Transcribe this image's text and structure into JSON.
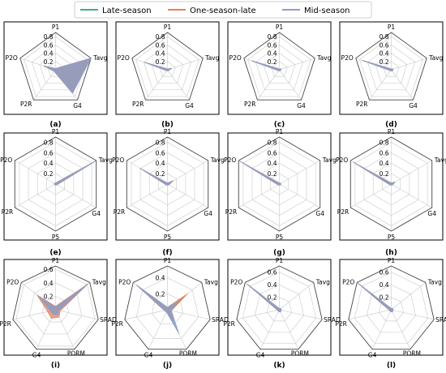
{
  "legend": {
    "position": "top-center",
    "items": [
      {
        "name": "Late-season",
        "color": "#44aa88"
      },
      {
        "name": "One-season-late",
        "color": "#e8825a"
      },
      {
        "name": "Mid-season",
        "color": "#8f9dc9"
      }
    ]
  },
  "chart_data": [
    {
      "type": "radar",
      "label": "(a)",
      "axes": [
        "P1",
        "Tavg",
        "G4",
        "P2R",
        "P2O"
      ],
      "r_ticks": [
        0.2,
        0.4,
        0.6,
        0.8
      ],
      "r_max": 0.9,
      "series": [
        {
          "name": "Late-season",
          "values": [
            0.03,
            0.9,
            0.68,
            0.05,
            0.3
          ]
        },
        {
          "name": "One-season-late",
          "values": [
            0.03,
            0.88,
            0.7,
            0.05,
            0.3
          ]
        },
        {
          "name": "Mid-season",
          "values": [
            0.03,
            0.9,
            0.7,
            0.05,
            0.29
          ]
        }
      ]
    },
    {
      "type": "radar",
      "label": "(b)",
      "axes": [
        "P1",
        "Tavg",
        "G4",
        "P2R",
        "P2O"
      ],
      "r_ticks": [
        0.2,
        0.4,
        0.6,
        0.8
      ],
      "r_max": 0.9,
      "series": [
        {
          "name": "Late-season",
          "values": [
            0.02,
            0.1,
            0.03,
            0.03,
            0.58
          ]
        },
        {
          "name": "One-season-late",
          "values": [
            0.02,
            0.11,
            0.03,
            0.03,
            0.57
          ]
        },
        {
          "name": "Mid-season",
          "values": [
            0.02,
            0.09,
            0.03,
            0.03,
            0.58
          ]
        }
      ]
    },
    {
      "type": "radar",
      "label": "(c)",
      "axes": [
        "P1",
        "Tavg",
        "G4",
        "P2R",
        "P2O"
      ],
      "r_ticks": [
        0.2,
        0.4,
        0.6,
        0.8
      ],
      "r_max": 0.9,
      "series": [
        {
          "name": "Late-season",
          "values": [
            0.02,
            0.05,
            0.03,
            0.03,
            0.7
          ]
        },
        {
          "name": "One-season-late",
          "values": [
            0.02,
            0.05,
            0.03,
            0.03,
            0.7
          ]
        },
        {
          "name": "Mid-season",
          "values": [
            0.02,
            0.05,
            0.03,
            0.03,
            0.7
          ]
        }
      ]
    },
    {
      "type": "radar",
      "label": "(d)",
      "axes": [
        "P1",
        "Tavg",
        "G4",
        "P2R",
        "P2O"
      ],
      "r_ticks": [
        0.2,
        0.4,
        0.6,
        0.8
      ],
      "r_max": 0.9,
      "series": [
        {
          "name": "Late-season",
          "values": [
            0.02,
            0.05,
            0.04,
            0.03,
            0.73
          ]
        },
        {
          "name": "One-season-late",
          "values": [
            0.02,
            0.05,
            0.04,
            0.03,
            0.73
          ]
        },
        {
          "name": "Mid-season",
          "values": [
            0.02,
            0.05,
            0.04,
            0.03,
            0.73
          ]
        }
      ]
    },
    {
      "type": "radar",
      "label": "(e)",
      "axes": [
        "P1",
        "Tavg",
        "G4",
        "P5",
        "P2R",
        "P2O"
      ],
      "r_ticks": [
        0.2,
        0.4,
        0.6,
        0.8
      ],
      "r_max": 0.9,
      "series": [
        {
          "name": "Late-season",
          "values": [
            0.02,
            0.88,
            0.03,
            0.02,
            0.02,
            0.03
          ]
        },
        {
          "name": "One-season-late",
          "values": [
            0.02,
            0.88,
            0.03,
            0.02,
            0.02,
            0.03
          ]
        },
        {
          "name": "Mid-season",
          "values": [
            0.02,
            0.88,
            0.03,
            0.02,
            0.02,
            0.03
          ]
        }
      ]
    },
    {
      "type": "radar",
      "label": "(f)",
      "axes": [
        "P1",
        "Tavg",
        "G4",
        "P5",
        "P2R",
        "P2O"
      ],
      "r_ticks": [
        0.2,
        0.4,
        0.6,
        0.8
      ],
      "r_max": 0.9,
      "series": [
        {
          "name": "Late-season",
          "values": [
            0.02,
            0.12,
            0.03,
            0.02,
            0.03,
            0.6
          ]
        },
        {
          "name": "One-season-late",
          "values": [
            0.02,
            0.13,
            0.03,
            0.02,
            0.03,
            0.6
          ]
        },
        {
          "name": "Mid-season",
          "values": [
            0.02,
            0.11,
            0.03,
            0.02,
            0.03,
            0.6
          ]
        }
      ]
    },
    {
      "type": "radar",
      "label": "(g)",
      "axes": [
        "P1",
        "Tavg",
        "G4",
        "P5",
        "P2R",
        "P2O"
      ],
      "r_ticks": [
        0.2,
        0.4,
        0.6,
        0.8
      ],
      "r_max": 0.9,
      "series": [
        {
          "name": "Late-season",
          "values": [
            0.02,
            0.03,
            0.03,
            0.02,
            0.03,
            0.87
          ]
        },
        {
          "name": "One-season-late",
          "values": [
            0.02,
            0.03,
            0.03,
            0.02,
            0.03,
            0.87
          ]
        },
        {
          "name": "Mid-season",
          "values": [
            0.02,
            0.03,
            0.03,
            0.02,
            0.03,
            0.87
          ]
        }
      ]
    },
    {
      "type": "radar",
      "label": "(h)",
      "axes": [
        "P1",
        "Tavg",
        "G4",
        "P5",
        "P2R",
        "P2O"
      ],
      "r_ticks": [
        0.2,
        0.4,
        0.6,
        0.8
      ],
      "r_max": 0.9,
      "series": [
        {
          "name": "Late-season",
          "values": [
            0.02,
            0.08,
            0.03,
            0.02,
            0.03,
            0.84
          ]
        },
        {
          "name": "One-season-late",
          "values": [
            0.02,
            0.06,
            0.03,
            0.02,
            0.03,
            0.84
          ]
        },
        {
          "name": "Mid-season",
          "values": [
            0.02,
            0.04,
            0.03,
            0.02,
            0.03,
            0.84
          ]
        }
      ]
    },
    {
      "type": "radar",
      "label": "(i)",
      "axes": [
        "P1",
        "Tavg",
        "SRAD",
        "PORM",
        "G4",
        "P2R",
        "P2O"
      ],
      "r_ticks": [
        0.2,
        0.4,
        0.6
      ],
      "r_max": 0.65,
      "series": [
        {
          "name": "Late-season",
          "values": [
            0.04,
            0.6,
            0.05,
            0.07,
            0.06,
            0.06,
            0.3
          ]
        },
        {
          "name": "One-season-late",
          "values": [
            0.05,
            0.62,
            0.07,
            0.12,
            0.14,
            0.12,
            0.35
          ]
        },
        {
          "name": "Mid-season",
          "values": [
            0.04,
            0.62,
            0.05,
            0.08,
            0.08,
            0.08,
            0.32
          ]
        }
      ]
    },
    {
      "type": "radar",
      "label": "(j)",
      "axes": [
        "P1",
        "Tavg",
        "SRAD",
        "PORM",
        "G4",
        "P2R",
        "P2O"
      ],
      "r_ticks": [
        0.2,
        0.4
      ],
      "r_max": 0.55,
      "series": [
        {
          "name": "Late-season",
          "values": [
            0.03,
            0.28,
            0.05,
            0.15,
            0.03,
            0.04,
            0.48
          ]
        },
        {
          "name": "One-season-late",
          "values": [
            0.03,
            0.32,
            0.05,
            0.17,
            0.03,
            0.04,
            0.5
          ]
        },
        {
          "name": "Mid-season",
          "values": [
            0.03,
            0.16,
            0.05,
            0.33,
            0.03,
            0.04,
            0.5
          ]
        }
      ]
    },
    {
      "type": "radar",
      "label": "(k)",
      "axes": [
        "P1",
        "Tavg",
        "SRAD",
        "PORM",
        "G4",
        "P2R",
        "P2O"
      ],
      "r_ticks": [
        0.2,
        0.4,
        0.6
      ],
      "r_max": 0.7,
      "series": [
        {
          "name": "Late-season",
          "values": [
            0.02,
            0.03,
            0.03,
            0.04,
            0.03,
            0.03,
            0.66
          ]
        },
        {
          "name": "One-season-late",
          "values": [
            0.02,
            0.03,
            0.03,
            0.04,
            0.03,
            0.03,
            0.66
          ]
        },
        {
          "name": "Mid-season",
          "values": [
            0.02,
            0.03,
            0.03,
            0.04,
            0.03,
            0.03,
            0.66
          ]
        }
      ]
    },
    {
      "type": "radar",
      "label": "(l)",
      "axes": [
        "P1",
        "Tavg",
        "SRAD",
        "PORM",
        "G4",
        "P2R",
        "P2O"
      ],
      "r_ticks": [
        0.2,
        0.4,
        0.6
      ],
      "r_max": 0.7,
      "series": [
        {
          "name": "Late-season",
          "values": [
            0.02,
            0.03,
            0.03,
            0.04,
            0.03,
            0.03,
            0.68
          ]
        },
        {
          "name": "One-season-late",
          "values": [
            0.02,
            0.03,
            0.03,
            0.04,
            0.03,
            0.03,
            0.68
          ]
        },
        {
          "name": "Mid-season",
          "values": [
            0.02,
            0.03,
            0.03,
            0.04,
            0.03,
            0.03,
            0.68
          ]
        }
      ]
    }
  ]
}
